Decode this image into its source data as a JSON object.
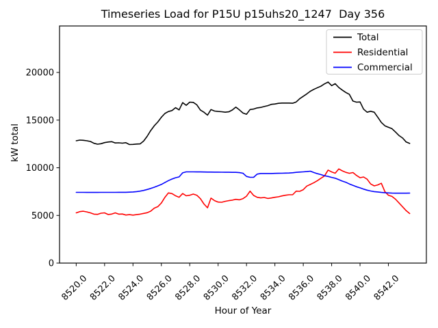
{
  "figure": {
    "title": "Timeseries Load for P15U p15uhs20_1247  Day 356",
    "xlabel": "Hour of Year",
    "ylabel": "kW total"
  },
  "chart_data": {
    "type": "line",
    "title": "Timeseries Load for P15U p15uhs20_1247  Day 356",
    "xlabel": "Hour of Year",
    "ylabel": "kW total",
    "xlim": [
      8518.825,
      8544.675
    ],
    "ylim": [
      0,
      24875
    ],
    "grid": false,
    "legend_position": "upper right",
    "xticks": [
      8520,
      8522,
      8524,
      8526,
      8528,
      8530,
      8532,
      8534,
      8536,
      8538,
      8540,
      8542
    ],
    "xtick_labels": [
      "8520.0",
      "8522.0",
      "8524.0",
      "8526.0",
      "8528.0",
      "8530.0",
      "8532.0",
      "8534.0",
      "8536.0",
      "8538.0",
      "8540.0",
      "8542.0"
    ],
    "yticks": [
      0,
      5000,
      10000,
      15000,
      20000
    ],
    "ytick_labels": [
      "0",
      "5000",
      "10000",
      "15000",
      "20000"
    ],
    "x": [
      8520,
      8520.25,
      8520.5,
      8520.75,
      8521,
      8521.25,
      8521.5,
      8521.75,
      8522,
      8522.25,
      8522.5,
      8522.75,
      8523,
      8523.25,
      8523.5,
      8523.75,
      8524,
      8524.25,
      8524.5,
      8524.75,
      8525,
      8525.25,
      8525.5,
      8525.75,
      8526,
      8526.25,
      8526.5,
      8526.75,
      8527,
      8527.25,
      8527.5,
      8527.75,
      8528,
      8528.25,
      8528.5,
      8528.75,
      8529,
      8529.25,
      8529.5,
      8529.75,
      8530,
      8530.25,
      8530.5,
      8530.75,
      8531,
      8531.25,
      8531.5,
      8531.75,
      8532,
      8532.25,
      8532.5,
      8532.75,
      8533,
      8533.25,
      8533.5,
      8533.75,
      8534,
      8534.25,
      8534.5,
      8534.75,
      8535,
      8535.25,
      8535.5,
      8535.75,
      8536,
      8536.25,
      8536.5,
      8536.75,
      8537,
      8537.25,
      8537.5,
      8537.75,
      8538,
      8538.25,
      8538.5,
      8538.75,
      8539,
      8539.25,
      8539.5,
      8539.75,
      8540,
      8540.25,
      8540.5,
      8540.75,
      8541,
      8541.25,
      8541.5,
      8541.75,
      8542,
      8542.25,
      8542.5,
      8542.75,
      8543,
      8543.25,
      8543.5
    ],
    "series": [
      {
        "name": "Total",
        "color": "#000000",
        "values": [
          12830,
          12900,
          12880,
          12830,
          12760,
          12570,
          12470,
          12520,
          12640,
          12700,
          12740,
          12600,
          12620,
          12580,
          12630,
          12440,
          12450,
          12490,
          12500,
          12800,
          13300,
          13900,
          14400,
          14800,
          15300,
          15700,
          15900,
          16000,
          16300,
          16070,
          16830,
          16550,
          16880,
          16860,
          16600,
          16050,
          15830,
          15520,
          16110,
          15950,
          15910,
          15880,
          15830,
          15870,
          16060,
          16360,
          16070,
          15740,
          15610,
          16110,
          16160,
          16280,
          16330,
          16420,
          16520,
          16650,
          16690,
          16760,
          16790,
          16790,
          16790,
          16770,
          16900,
          17250,
          17500,
          17750,
          18030,
          18230,
          18400,
          18560,
          18800,
          18990,
          18620,
          18820,
          18420,
          18150,
          17900,
          17700,
          17000,
          16880,
          16900,
          16150,
          15830,
          15930,
          15825,
          15300,
          14750,
          14400,
          14250,
          14100,
          13750,
          13380,
          13120,
          12700,
          12550
        ]
      },
      {
        "name": "Residential",
        "color": "#ff0000",
        "values": [
          5270,
          5400,
          5440,
          5370,
          5270,
          5130,
          5110,
          5230,
          5270,
          5100,
          5140,
          5270,
          5130,
          5150,
          5040,
          5085,
          5035,
          5085,
          5130,
          5210,
          5280,
          5450,
          5760,
          5920,
          6300,
          6900,
          7360,
          7290,
          7060,
          6900,
          7300,
          7060,
          7120,
          7240,
          7120,
          6760,
          6200,
          5800,
          6820,
          6550,
          6400,
          6380,
          6480,
          6550,
          6600,
          6690,
          6640,
          6760,
          7020,
          7550,
          7100,
          6900,
          6840,
          6880,
          6780,
          6830,
          6900,
          6950,
          7050,
          7120,
          7170,
          7170,
          7550,
          7530,
          7700,
          8080,
          8250,
          8440,
          8650,
          8900,
          9150,
          9760,
          9560,
          9430,
          9880,
          9680,
          9520,
          9420,
          9500,
          9200,
          8950,
          9030,
          8800,
          8300,
          8100,
          8200,
          8370,
          7500,
          7120,
          7000,
          6700,
          6300,
          5900,
          5500,
          5200
        ]
      },
      {
        "name": "Commercial",
        "color": "#0000ff",
        "values": [
          7420,
          7420,
          7420,
          7415,
          7415,
          7415,
          7415,
          7420,
          7420,
          7420,
          7420,
          7420,
          7425,
          7430,
          7430,
          7440,
          7460,
          7500,
          7550,
          7620,
          7720,
          7830,
          7960,
          8100,
          8250,
          8450,
          8650,
          8820,
          8950,
          9040,
          9470,
          9570,
          9570,
          9570,
          9565,
          9560,
          9555,
          9550,
          9545,
          9540,
          9540,
          9535,
          9530,
          9525,
          9520,
          9520,
          9490,
          9430,
          9090,
          9000,
          9000,
          9330,
          9400,
          9400,
          9400,
          9400,
          9410,
          9420,
          9430,
          9440,
          9450,
          9480,
          9520,
          9550,
          9570,
          9600,
          9640,
          9500,
          9380,
          9280,
          9160,
          9090,
          8990,
          8900,
          8750,
          8600,
          8480,
          8300,
          8150,
          8010,
          7890,
          7760,
          7650,
          7560,
          7500,
          7460,
          7410,
          7380,
          7360,
          7340,
          7330,
          7330,
          7330,
          7330,
          7340
        ]
      }
    ]
  }
}
